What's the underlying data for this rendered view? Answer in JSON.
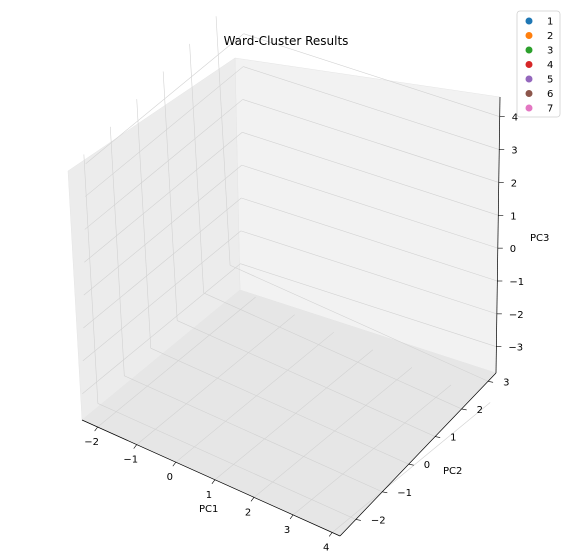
{
  "chart_data": {
    "type": "scatter",
    "title": "Ward-Cluster Results",
    "xlabel": "PC1",
    "ylabel": "PC2",
    "zlabel": "PC3",
    "xlim": [
      -2.4,
      4.2
    ],
    "ylim": [
      -2.6,
      3.3
    ],
    "zlim": [
      -3.8,
      4.6
    ],
    "xticks": [
      "−2",
      "−1",
      "0",
      "1",
      "2",
      "3",
      "4"
    ],
    "yticks": [
      "−2",
      "−1",
      "0",
      "1",
      "2",
      "3"
    ],
    "zticks": [
      "−3",
      "−2",
      "−1",
      "0",
      "1",
      "2",
      "3",
      "4"
    ],
    "legend": {
      "placement": "top-right",
      "entries": [
        "1",
        "2",
        "3",
        "4",
        "5",
        "6",
        "7"
      ]
    },
    "series": [
      {
        "name": "1",
        "color": "#1f77b4",
        "points": []
      },
      {
        "name": "2",
        "color": "#ff7f0e",
        "points": []
      },
      {
        "name": "3",
        "color": "#2ca02c",
        "points": []
      },
      {
        "name": "4",
        "color": "#d62728",
        "points": []
      },
      {
        "name": "5",
        "color": "#9467bd",
        "points": []
      },
      {
        "name": "6",
        "color": "#8c564b",
        "points": []
      },
      {
        "name": "7",
        "color": "#e377c2",
        "points": []
      }
    ]
  }
}
